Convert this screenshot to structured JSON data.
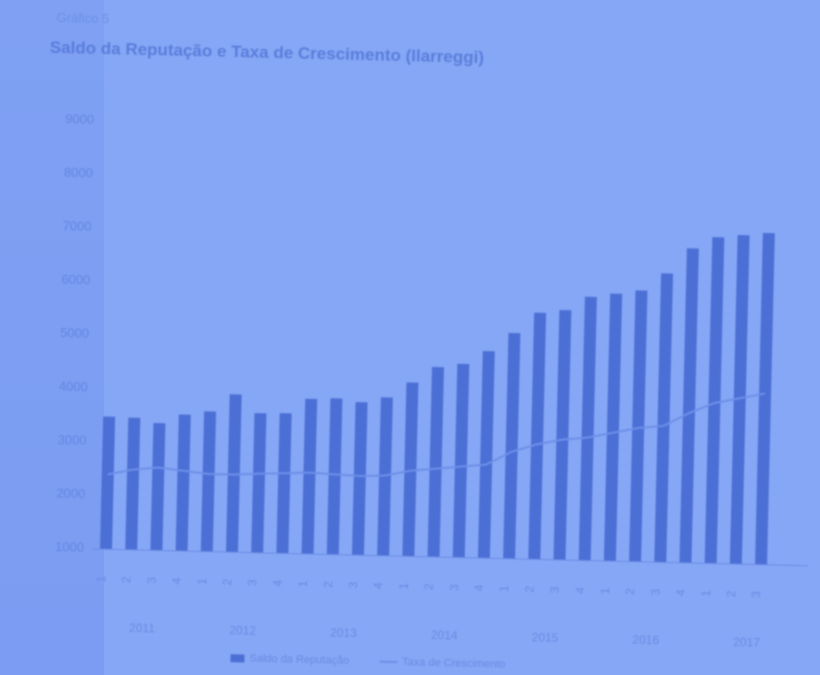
{
  "header": {
    "kicker": "Gráfico 5",
    "title": "Saldo da Reputação e Taxa de Crescimento (Ilarreggi)"
  },
  "chart_data": {
    "type": "bar",
    "title": "Saldo da Reputação e Taxa de Crescimento (Ilarreggi)",
    "xlabel": "",
    "ylabel": "",
    "ylim": [
      0,
      8000
    ],
    "y_ticks": [
      "9000",
      "8000",
      "7000",
      "6000",
      "5000",
      "4000",
      "3000",
      "2000",
      "1000"
    ],
    "categories": [
      "1",
      "2",
      "3",
      "4",
      "1",
      "2",
      "3",
      "4",
      "1",
      "2",
      "3",
      "4",
      "1",
      "2",
      "3",
      "4",
      "1",
      "2",
      "3",
      "4",
      "1",
      "2",
      "3",
      "4",
      "1",
      "2",
      "3"
    ],
    "x_groups": [
      "2011",
      "2012",
      "2013",
      "2014",
      "2015",
      "2016",
      "2017"
    ],
    "series": [
      {
        "type": "bar",
        "values": [
          2480,
          2470,
          2380,
          2550,
          2620,
          2950,
          2610,
          2620,
          2900,
          2920,
          2860,
          2960,
          3250,
          3550,
          3620,
          3870,
          4220,
          4610,
          4670,
          4930,
          5000,
          5070,
          5400,
          5880,
          6100,
          6150,
          6200
        ]
      },
      {
        "type": "line",
        "values": [
          1400,
          1500,
          1550,
          1500,
          1450,
          1450,
          1480,
          1500,
          1520,
          1500,
          1480,
          1500,
          1600,
          1650,
          1700,
          1750,
          2000,
          2150,
          2250,
          2300,
          2400,
          2500,
          2550,
          2800,
          3000,
          3100,
          3200
        ]
      }
    ],
    "legend": [
      "Saldo da Reputação",
      "Taxa de Crescimento"
    ],
    "grid": false,
    "legend_position": "bottom",
    "colors": {
      "bar": "#4c6fd6",
      "line": "#6d8fe8",
      "background": "#7ea0f4",
      "text": "#5a7ddc"
    }
  }
}
